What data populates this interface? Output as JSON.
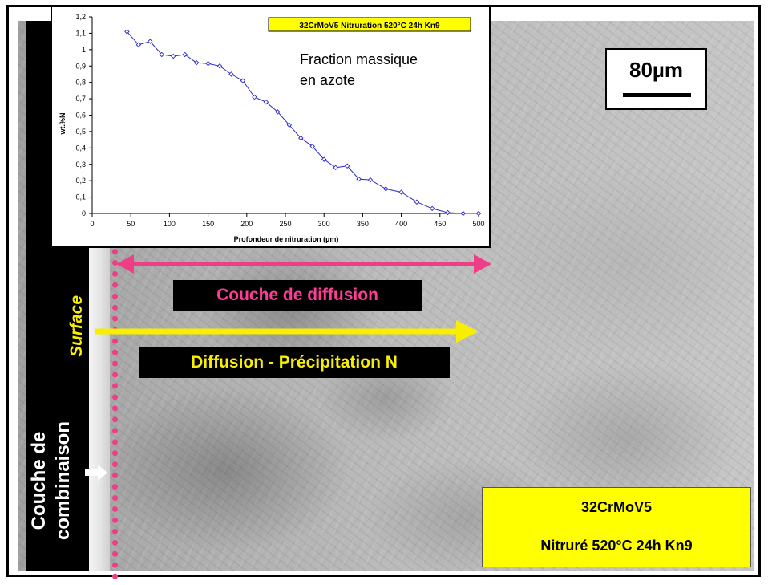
{
  "background": {
    "surface_label": "Surface",
    "compound_layer_label_line1": "Couche de",
    "compound_layer_label_line2": "combinaison",
    "diffusion_layer_label": "Couche de diffusion",
    "precipitation_label": "Diffusion - Précipitation N",
    "scale_bar_label": "80µm",
    "sample_line1": "32CrMoV5",
    "sample_line2": "Nitruré 520°C 24h Kn9",
    "colors": {
      "pink": "#ee3f86",
      "yellow": "#f7ee00",
      "box_yellow": "#ffff00",
      "black": "#000000",
      "white": "#ffffff"
    },
    "icons": [
      "double-arrow-icon",
      "arrow-right-icon"
    ]
  },
  "chart_data": {
    "type": "line",
    "title": "32CrMoV5 Nitruration 520°C 24h Kn9",
    "annotation_line1": "Fraction massique",
    "annotation_line2": "en azote",
    "xlabel": "Profondeur de nitruration (µm)",
    "ylabel": "wt.%N",
    "xlim": [
      0,
      500
    ],
    "ylim": [
      0,
      1.2
    ],
    "xticks": [
      "0",
      "50",
      "100",
      "150",
      "200",
      "250",
      "300",
      "350",
      "400",
      "450",
      "500"
    ],
    "yticks": [
      "0",
      "0,1",
      "0,2",
      "0,3",
      "0,4",
      "0,5",
      "0,6",
      "0,7",
      "0,8",
      "0,9",
      "1",
      "1,1",
      "1,2"
    ],
    "series_color": "#2a2acc",
    "grid": false,
    "series": [
      {
        "x": [
          45,
          60,
          75,
          90,
          105,
          120,
          135,
          150,
          165,
          180,
          195,
          210,
          225,
          240,
          255,
          270,
          285,
          300,
          315,
          330,
          345,
          360,
          380,
          400,
          420,
          440,
          460,
          480,
          500
        ],
        "values": [
          1.11,
          1.03,
          1.05,
          0.97,
          0.96,
          0.97,
          0.92,
          0.915,
          0.9,
          0.85,
          0.81,
          0.71,
          0.68,
          0.62,
          0.54,
          0.46,
          0.41,
          0.33,
          0.28,
          0.29,
          0.21,
          0.205,
          0.15,
          0.13,
          0.07,
          0.03,
          0.005,
          0.0,
          0.0
        ]
      }
    ]
  }
}
